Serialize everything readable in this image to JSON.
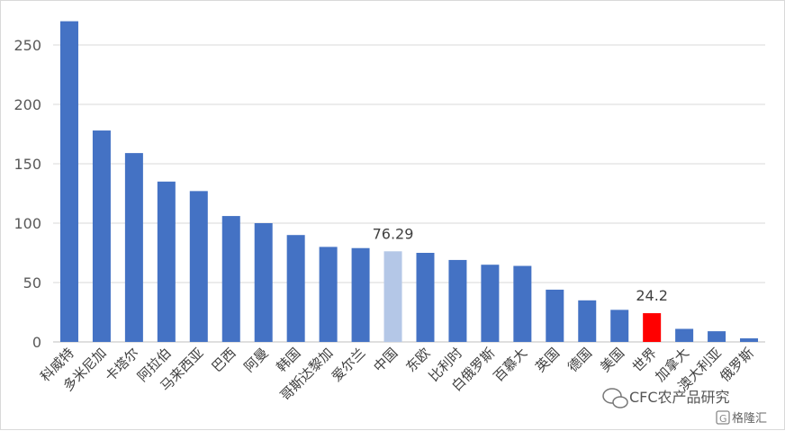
{
  "chart_data": {
    "type": "bar",
    "categories": [
      "科威特",
      "多米尼加",
      "卡塔尔",
      "阿拉伯",
      "马来西亚",
      "巴西",
      "阿曼",
      "韩国",
      "哥斯达黎加",
      "爱尔兰",
      "中国",
      "东欧",
      "比利时",
      "白俄罗斯",
      "百慕大",
      "英国",
      "德国",
      "美国",
      "世界",
      "加拿大",
      "澳大利亚",
      "俄罗斯"
    ],
    "values": [
      270,
      178,
      159,
      135,
      127,
      106,
      100,
      90,
      80,
      79,
      76.29,
      75,
      69,
      65,
      64,
      44,
      35,
      27,
      24.2,
      11,
      9,
      3
    ],
    "ylim": [
      0,
      250
    ],
    "yticks": [
      "0",
      "50",
      "100",
      "150",
      "200",
      "250"
    ],
    "grid": true,
    "colors": {
      "default": "#4472c4",
      "highlight_china": "#b4c7e7",
      "highlight_world": "#ff0000"
    },
    "highlighted_indices": [
      10,
      18
    ],
    "data_labels": [
      {
        "index": 10,
        "text": "76.29"
      },
      {
        "index": 18,
        "text": "24.2"
      }
    ]
  },
  "watermark": {
    "text": "CFC农产品研究",
    "secondary": "格隆汇"
  }
}
